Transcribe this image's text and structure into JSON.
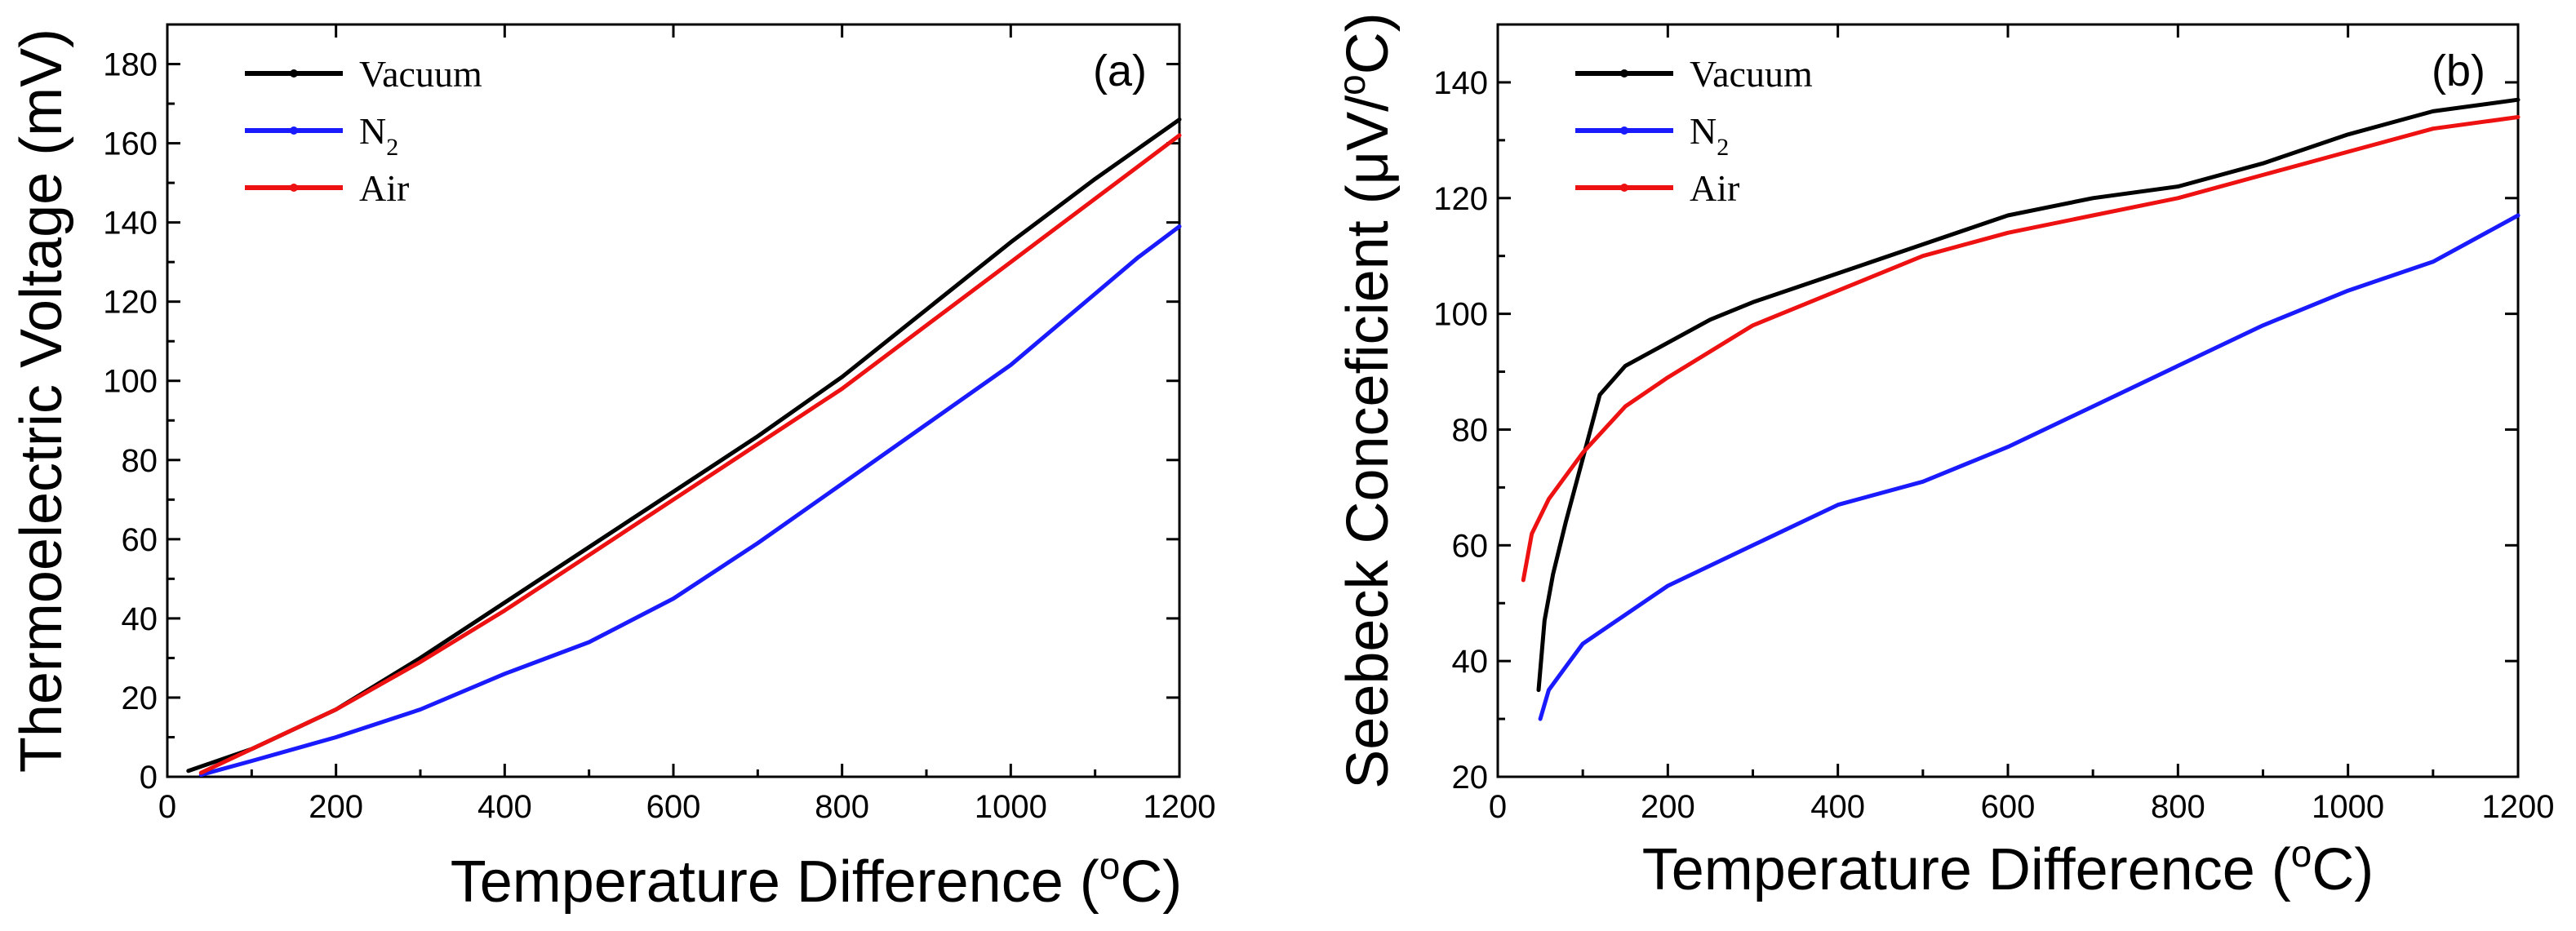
{
  "chart_data": [
    {
      "type": "line",
      "panel_label": "(a)",
      "xlabel": {
        "main": "Temperature Difference (",
        "sup": "o",
        "tail": "C)"
      },
      "ylabel": {
        "main": "Thermoelectric Voltage (mV)"
      },
      "xlim": [
        0,
        1200
      ],
      "ylim": [
        0,
        190
      ],
      "x_ticks": [
        "0",
        "200",
        "400",
        "600",
        "800",
        "1000",
        "1200"
      ],
      "y_ticks": [
        "0",
        "20",
        "40",
        "60",
        "80",
        "100",
        "120",
        "140",
        "160",
        "180"
      ],
      "legend_position": "top-left",
      "series": [
        {
          "name": "Vacuum",
          "legend": {
            "main": "Vacuum"
          },
          "color": "#000000",
          "x": [
            25,
            100,
            200,
            300,
            400,
            500,
            600,
            700,
            800,
            900,
            1000,
            1100,
            1200
          ],
          "y": [
            1.5,
            7,
            17,
            30,
            44,
            58,
            72,
            86,
            101,
            118,
            135,
            151,
            166
          ]
        },
        {
          "name": "N2",
          "legend": {
            "main": "N",
            "sub": "2"
          },
          "color": "#1a1aff",
          "x": [
            40,
            100,
            200,
            300,
            400,
            500,
            600,
            700,
            800,
            900,
            1000,
            1100,
            1150,
            1200
          ],
          "y": [
            0.5,
            4,
            10,
            17,
            26,
            34,
            45,
            59,
            74,
            89,
            104,
            122,
            131,
            139
          ]
        },
        {
          "name": "Air",
          "legend": {
            "main": "Air"
          },
          "color": "#ee1111",
          "x": [
            40,
            100,
            200,
            300,
            400,
            500,
            600,
            700,
            800,
            900,
            1000,
            1100,
            1200
          ],
          "y": [
            1,
            7,
            17,
            29,
            42,
            56,
            70,
            84,
            98,
            114,
            130,
            146,
            162
          ]
        }
      ]
    },
    {
      "type": "line",
      "panel_label": "(b)",
      "xlabel": {
        "main": "Temperature Difference (",
        "sup": "o",
        "tail": "C)"
      },
      "ylabel": {
        "main": "Seebeck Conceficient (μV/",
        "sup": "o",
        "tail": "C)"
      },
      "xlim": [
        0,
        1200
      ],
      "ylim": [
        20,
        150
      ],
      "x_ticks": [
        "0",
        "200",
        "400",
        "600",
        "800",
        "1000",
        "1200"
      ],
      "y_ticks": [
        "20",
        "40",
        "60",
        "80",
        "100",
        "120",
        "140"
      ],
      "legend_position": "top-left",
      "series": [
        {
          "name": "Vacuum",
          "legend": {
            "main": "Vacuum"
          },
          "color": "#000000",
          "x": [
            48,
            55,
            65,
            80,
            100,
            120,
            150,
            200,
            250,
            300,
            400,
            500,
            600,
            700,
            800,
            900,
            1000,
            1100,
            1200
          ],
          "y": [
            35,
            47,
            55,
            64,
            75,
            86,
            91,
            95,
            99,
            102,
            107,
            112,
            117,
            120,
            122,
            126,
            131,
            135,
            137
          ]
        },
        {
          "name": "N2",
          "legend": {
            "main": "N",
            "sub": "2"
          },
          "color": "#1a1aff",
          "x": [
            50,
            60,
            80,
            100,
            150,
            200,
            300,
            400,
            500,
            600,
            700,
            800,
            900,
            1000,
            1100,
            1200
          ],
          "y": [
            30,
            35,
            39,
            43,
            48,
            53,
            60,
            67,
            71,
            77,
            84,
            91,
            98,
            104,
            109,
            117
          ]
        },
        {
          "name": "Air",
          "legend": {
            "main": "Air"
          },
          "color": "#ee1111",
          "x": [
            30,
            40,
            60,
            80,
            100,
            150,
            200,
            300,
            400,
            500,
            600,
            700,
            800,
            900,
            1000,
            1100,
            1200
          ],
          "y": [
            54,
            62,
            68,
            72,
            76,
            84,
            89,
            98,
            104,
            110,
            114,
            117,
            120,
            124,
            128,
            132,
            134
          ]
        }
      ]
    }
  ]
}
